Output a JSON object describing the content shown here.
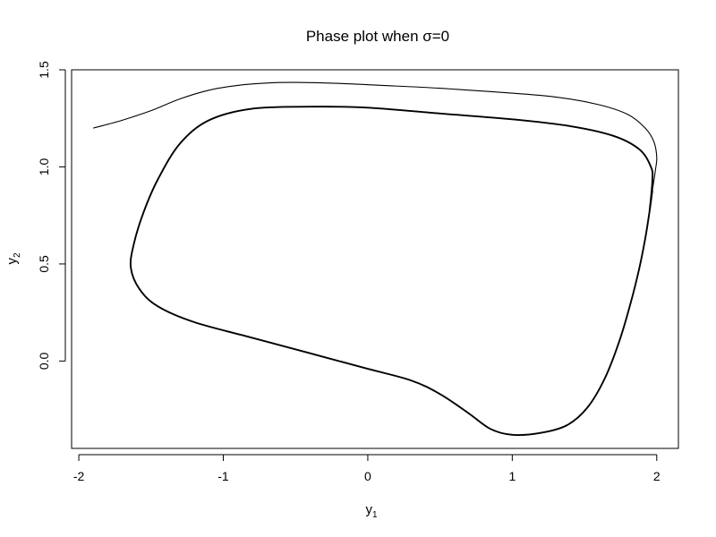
{
  "chart_data": {
    "type": "line",
    "title": "Phase plot when σ=0",
    "xlabel": "y",
    "xlabel_sub": "1",
    "ylabel": "y",
    "ylabel_sub": "2",
    "xlim": [
      -2.05,
      2.15
    ],
    "ylim": [
      -0.45,
      1.5
    ],
    "x_ticks": [
      -2,
      -1,
      0,
      1,
      2
    ],
    "x_tick_labels": [
      "-2",
      "-1",
      "0",
      "1",
      "2"
    ],
    "y_ticks": [
      0.0,
      0.5,
      1.0,
      1.5
    ],
    "y_tick_labels": [
      "0.0",
      "0.5",
      "1.0",
      "1.5"
    ],
    "grid": false,
    "line_color": "#000000",
    "series": [
      {
        "points": [
          [
            -1.9,
            1.2
          ],
          [
            -1.7,
            1.24
          ],
          [
            -1.5,
            1.29
          ],
          [
            -1.3,
            1.35
          ],
          [
            -1.1,
            1.395
          ],
          [
            -0.9,
            1.42
          ],
          [
            -0.7,
            1.432
          ],
          [
            -0.5,
            1.435
          ],
          [
            -0.2,
            1.43
          ],
          [
            0.1,
            1.42
          ],
          [
            0.5,
            1.405
          ],
          [
            0.9,
            1.385
          ],
          [
            1.3,
            1.36
          ],
          [
            1.6,
            1.32
          ],
          [
            1.8,
            1.27
          ],
          [
            1.92,
            1.2
          ],
          [
            1.98,
            1.13
          ],
          [
            2.0,
            1.05
          ],
          [
            1.99,
            0.98
          ],
          [
            1.97,
            0.88
          ]
        ]
      },
      {
        "points": [
          [
            1.97,
            0.88
          ],
          [
            1.95,
            0.77
          ],
          [
            1.92,
            0.63
          ],
          [
            1.88,
            0.48
          ],
          [
            1.82,
            0.3
          ],
          [
            1.74,
            0.1
          ],
          [
            1.64,
            -0.09
          ],
          [
            1.52,
            -0.24
          ],
          [
            1.38,
            -0.33
          ],
          [
            1.2,
            -0.37
          ],
          [
            1.0,
            -0.38
          ],
          [
            0.85,
            -0.35
          ],
          [
            0.7,
            -0.27
          ],
          [
            0.5,
            -0.17
          ],
          [
            0.3,
            -0.1
          ],
          [
            0.0,
            -0.04
          ],
          [
            -0.4,
            0.04
          ],
          [
            -0.8,
            0.12
          ],
          [
            -1.2,
            0.2
          ],
          [
            -1.45,
            0.28
          ],
          [
            -1.58,
            0.37
          ],
          [
            -1.64,
            0.48
          ],
          [
            -1.62,
            0.6
          ],
          [
            -1.55,
            0.77
          ],
          [
            -1.45,
            0.94
          ],
          [
            -1.3,
            1.12
          ],
          [
            -1.1,
            1.24
          ],
          [
            -0.8,
            1.3
          ],
          [
            -0.4,
            1.31
          ],
          [
            0.0,
            1.305
          ],
          [
            0.5,
            1.275
          ],
          [
            1.0,
            1.245
          ],
          [
            1.4,
            1.21
          ],
          [
            1.7,
            1.16
          ],
          [
            1.88,
            1.09
          ],
          [
            1.96,
            1.0
          ],
          [
            1.97,
            0.93
          ],
          [
            1.95,
            0.77
          ]
        ]
      }
    ]
  }
}
